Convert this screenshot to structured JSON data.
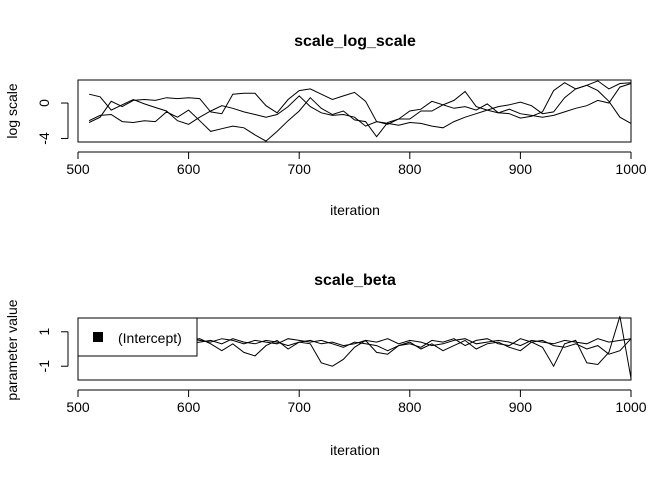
{
  "chart_data": [
    {
      "type": "line",
      "title": "scale_log_scale",
      "xlabel": "iteration",
      "ylabel": "log scale",
      "xlim": [
        500,
        1000
      ],
      "ylim": [
        -4.4,
        2.6
      ],
      "x_ticks": [
        500,
        600,
        700,
        800,
        900,
        1000
      ],
      "y_ticks": [
        -4,
        0
      ],
      "legend": null,
      "x": [
        510,
        520,
        530,
        540,
        550,
        560,
        570,
        580,
        590,
        600,
        610,
        620,
        630,
        640,
        650,
        660,
        670,
        680,
        690,
        700,
        710,
        720,
        730,
        740,
        750,
        760,
        770,
        780,
        790,
        800,
        810,
        820,
        830,
        840,
        850,
        860,
        870,
        880,
        890,
        900,
        910,
        920,
        930,
        940,
        950,
        960,
        970,
        980,
        990,
        1000
      ],
      "series": [
        {
          "values": [
            1.0,
            0.7,
            -0.8,
            -0.2,
            0.4,
            -0.1,
            -0.5,
            -0.9,
            -2.0,
            -2.4,
            -1.6,
            -0.9,
            -0.3,
            -0.6,
            -1.0,
            -1.3,
            -1.6,
            -1.3,
            -0.4,
            0.8,
            -0.4,
            -1.1,
            -1.4,
            -1.3,
            -1.6,
            -2.6,
            -2.1,
            -2.3,
            -2.5,
            -2.2,
            -2.3,
            -2.6,
            -2.8,
            -2.1,
            -1.6,
            -1.2,
            -0.8,
            -0.4,
            -0.2,
            0.1,
            -0.3,
            -1.2,
            -1.0,
            0.6,
            1.6,
            2.0,
            1.4,
            0.2,
            -1.6,
            -2.3
          ]
        },
        {
          "values": [
            -2.2,
            -1.6,
            0.2,
            -0.4,
            0.3,
            0.4,
            0.3,
            0.6,
            0.5,
            0.6,
            0.5,
            -1.0,
            -1.2,
            1.0,
            1.1,
            1.1,
            -0.3,
            -1.1,
            0.4,
            1.4,
            1.6,
            1.0,
            0.4,
            0.8,
            1.2,
            0.2,
            -2.1,
            -2.4,
            -1.8,
            -0.9,
            -0.7,
            0.2,
            -0.2,
            0.3,
            1.3,
            -0.4,
            -0.8,
            -1.1,
            -0.7,
            -1.2,
            -1.4,
            -1.6,
            -1.4,
            -1.0,
            -0.6,
            -0.3,
            0.3,
            0.0,
            1.8,
            2.2
          ]
        },
        {
          "values": [
            -2.0,
            -1.4,
            -1.3,
            -2.1,
            -2.2,
            -2.0,
            -2.1,
            -1.0,
            -1.6,
            -0.8,
            -2.0,
            -3.2,
            -2.9,
            -2.6,
            -2.8,
            -3.6,
            -4.3,
            -3.2,
            -2.0,
            -0.9,
            0.6,
            -0.6,
            -1.3,
            -0.9,
            -1.9,
            -2.1,
            -3.8,
            -2.2,
            -1.8,
            -1.8,
            -0.9,
            -0.9,
            -0.2,
            -0.6,
            -0.4,
            -0.8,
            -0.1,
            -1.1,
            -1.2,
            -1.7,
            -1.5,
            -1.0,
            1.4,
            2.3,
            1.6,
            2.0,
            2.5,
            1.6,
            2.2,
            2.3
          ]
        }
      ]
    },
    {
      "type": "line",
      "title": "scale_beta",
      "xlabel": "iteration",
      "ylabel": "parameter value",
      "xlim": [
        500,
        1000
      ],
      "ylim": [
        -1.8,
        1.8
      ],
      "x_ticks": [
        500,
        600,
        700,
        800,
        900,
        1000
      ],
      "y_ticks": [
        -1.0,
        1.0
      ],
      "legend": {
        "entries": [
          "(Intercept)"
        ],
        "position": "top-left"
      },
      "x": [
        510,
        520,
        530,
        540,
        550,
        560,
        570,
        580,
        590,
        600,
        610,
        620,
        630,
        640,
        650,
        660,
        670,
        680,
        690,
        700,
        710,
        720,
        730,
        740,
        750,
        760,
        770,
        780,
        790,
        800,
        810,
        820,
        830,
        840,
        850,
        860,
        870,
        880,
        890,
        900,
        910,
        920,
        930,
        940,
        950,
        960,
        970,
        980,
        990,
        1000
      ],
      "series": [
        {
          "name": "(Intercept)",
          "values": [
            0.3,
            0.5,
            0.2,
            0.4,
            0.3,
            0.5,
            0.2,
            0.3,
            0.4,
            0.3,
            0.4,
            0.5,
            0.3,
            0.6,
            0.4,
            0.3,
            0.5,
            0.4,
            0.2,
            0.4,
            0.5,
            0.3,
            0.4,
            0.2,
            0.3,
            0.5,
            0.4,
            0.6,
            0.3,
            0.5,
            0.4,
            0.2,
            0.3,
            0.5,
            0.6,
            0.3,
            0.4,
            0.5,
            0.4,
            0.2,
            0.5,
            0.4,
            0.3,
            0.5,
            0.4,
            0.3,
            0.6,
            0.4,
            0.5,
            0.6
          ]
        },
        {
          "name": "(Intercept)",
          "values": [
            0.4,
            0.6,
            0.5,
            0.3,
            0.6,
            0.2,
            0.5,
            0.6,
            0.4,
            0.5,
            0.6,
            0.3,
            -0.1,
            0.3,
            -0.2,
            -0.4,
            0.2,
            0.5,
            0.0,
            0.4,
            0.3,
            -0.8,
            -1.0,
            -0.6,
            0.1,
            0.5,
            -0.2,
            -0.3,
            0.2,
            0.4,
            0.0,
            0.3,
            -0.1,
            0.2,
            0.5,
            0.0,
            0.3,
            0.4,
            0.1,
            -0.1,
            0.4,
            0.5,
            0.2,
            0.1,
            0.3,
            0.0,
            0.2,
            -0.3,
            -0.1,
            0.6
          ]
        },
        {
          "name": "(Intercept)",
          "values": [
            0.5,
            0.3,
            0.4,
            0.6,
            0.2,
            0.4,
            0.5,
            0.2,
            0.5,
            0.6,
            0.5,
            0.4,
            0.6,
            0.5,
            0.3,
            0.5,
            0.4,
            0.3,
            0.6,
            0.5,
            0.4,
            0.5,
            0.3,
            0.1,
            0.4,
            0.3,
            0.2,
            -0.1,
            0.2,
            0.3,
            0.1,
            0.5,
            0.4,
            0.6,
            0.2,
            0.5,
            0.6,
            0.3,
            0.2,
            0.6,
            0.4,
            0.1,
            -1.0,
            0.3,
            0.5,
            -0.8,
            -0.9,
            -0.2,
            1.9,
            -1.7
          ]
        }
      ]
    }
  ]
}
